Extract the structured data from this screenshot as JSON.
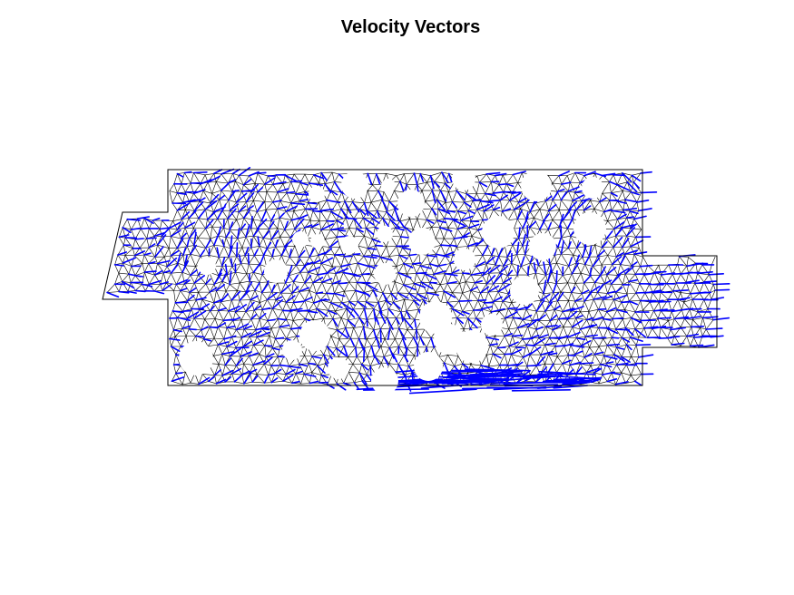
{
  "figure": {
    "title": "Velocity Vectors"
  },
  "style": {
    "background": "#ffffff",
    "mesh_color": "#000000",
    "vector_color": "#0000ff",
    "hole_fill": "#ffffff"
  },
  "chart_data": {
    "type": "vector-field",
    "axes_visible": false,
    "grid": false,
    "legend": "none",
    "elements": [
      "triangular mesh",
      "velocity vectors",
      "circular holes"
    ]
  }
}
